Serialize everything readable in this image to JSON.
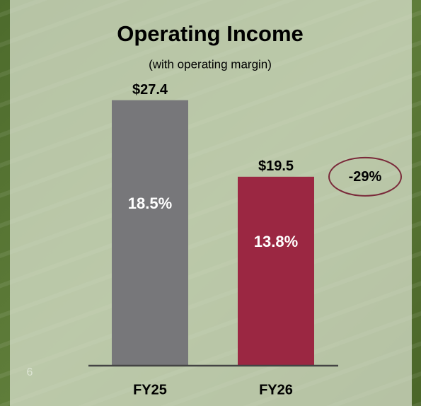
{
  "chart_data": {
    "type": "bar",
    "title": "Operating Income",
    "subtitle": "(with operating margin)",
    "categories": [
      "FY25",
      "FY26"
    ],
    "values": [
      27.4,
      19.5
    ],
    "value_labels": [
      "$27.4",
      "$19.5"
    ],
    "colors": [
      "#77777a",
      "#9b2742"
    ],
    "inner_labels": [
      "18.5%",
      "13.8%"
    ],
    "annotation": "-29%",
    "ylim": [
      0,
      30
    ]
  },
  "page_number": "6"
}
